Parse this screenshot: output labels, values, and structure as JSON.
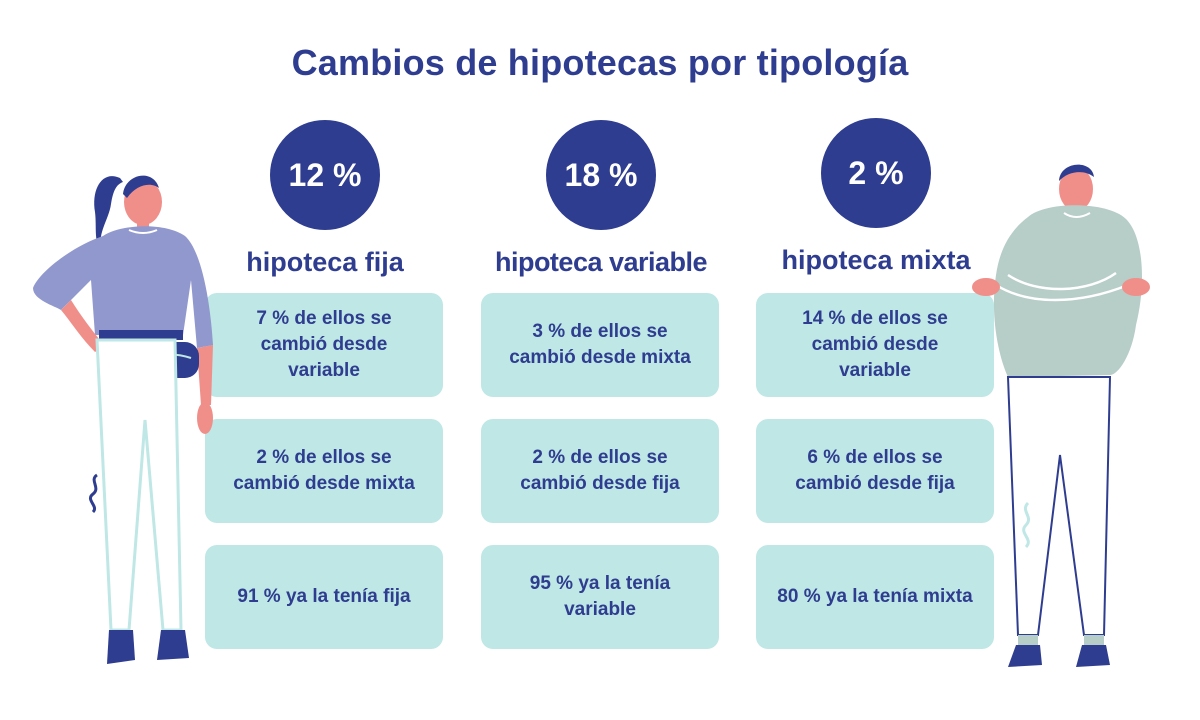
{
  "title": "Cambios de hipotecas por tipología",
  "columns": [
    {
      "percent": "12 %",
      "label": "hipoteca fija",
      "boxes": [
        "7 % de ellos se cambió desde variable",
        "2 % de ellos se cambió desde mixta",
        "91 % ya la tenía fija"
      ]
    },
    {
      "percent": "18 %",
      "label": "hipoteca variable",
      "boxes": [
        "3 % de ellos se cambió desde mixta",
        "2 % de ellos se cambió desde fija",
        "95 % ya la tenía variable"
      ]
    },
    {
      "percent": "2 %",
      "label": "hipoteca mixta",
      "boxes": [
        "14 % de ellos se cambió desde variable",
        "6 % de ellos se cambió desde fija",
        "80 % ya la tenía mixta"
      ]
    }
  ],
  "colors": {
    "primary": "#2e3d8f",
    "box_fill": "#bfe7e5",
    "woman_shirt": "#9098cd",
    "man_sweater": "#b6cdc8",
    "skin": "#f08f8a"
  },
  "illustrations": [
    "woman-figure",
    "man-figure"
  ]
}
